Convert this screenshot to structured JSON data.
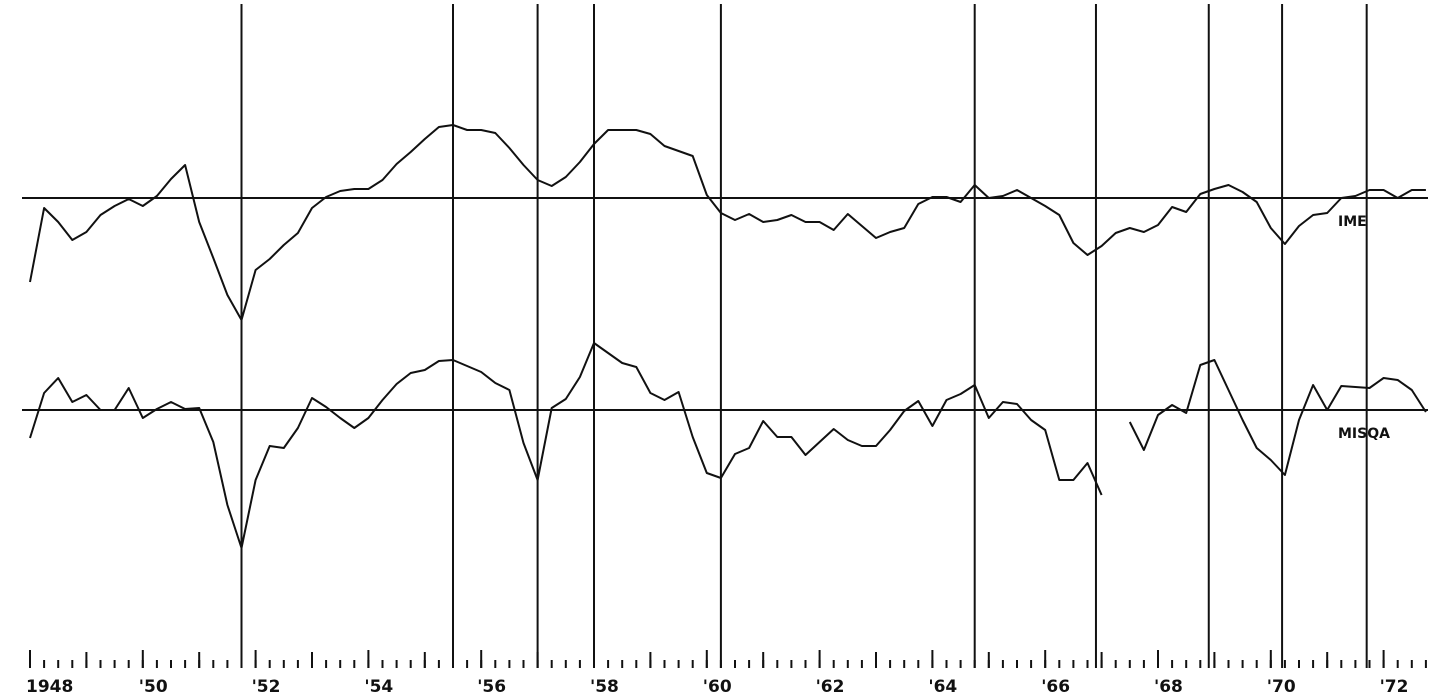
{
  "chart_data": {
    "type": "line",
    "xlim": [
      1948,
      1973
    ],
    "ylim": [
      0,
      60
    ],
    "xticks": [
      {
        "value": 1948,
        "label": "1948"
      },
      {
        "value": 1950,
        "label": "'50"
      },
      {
        "value": 1952,
        "label": "'52"
      },
      {
        "value": 1954,
        "label": "'54"
      },
      {
        "value": 1956,
        "label": "'56"
      },
      {
        "value": 1958,
        "label": "'58"
      },
      {
        "value": 1960,
        "label": "'60"
      },
      {
        "value": 1962,
        "label": "'62"
      },
      {
        "value": 1964,
        "label": "'64"
      },
      {
        "value": 1966,
        "label": "'66"
      },
      {
        "value": 1968,
        "label": "'68"
      },
      {
        "value": 1970,
        "label": "'70"
      },
      {
        "value": 1972,
        "label": "'72"
      }
    ],
    "minor_xticks": [
      1949,
      1951,
      1953,
      1955,
      1957,
      1959,
      1961,
      1963,
      1965,
      1967,
      1969,
      1971
    ],
    "reference_lines": [
      1951.75,
      1955.5,
      1957.0,
      1958.0,
      1960.25,
      1964.75,
      1966.9,
      1968.9,
      1970.2,
      1971.7
    ],
    "x": [
      1948,
      1948.25,
      1948.5,
      1948.75,
      1949,
      1949.25,
      1949.5,
      1949.75,
      1950,
      1950.25,
      1950.5,
      1950.75,
      1951,
      1951.25,
      1951.5,
      1951.75,
      1952,
      1952.25,
      1952.5,
      1952.75,
      1953,
      1953.25,
      1953.5,
      1953.75,
      1954,
      1954.25,
      1954.5,
      1954.75,
      1955,
      1955.25,
      1955.5,
      1955.75,
      1956,
      1956.25,
      1956.5,
      1956.75,
      1957,
      1957.25,
      1957.5,
      1957.75,
      1958,
      1958.25,
      1958.5,
      1958.75,
      1959,
      1959.25,
      1959.5,
      1959.75,
      1960,
      1960.25,
      1960.5,
      1960.75,
      1961,
      1961.25,
      1961.5,
      1961.75,
      1962,
      1962.25,
      1962.5,
      1962.75,
      1963,
      1963.25,
      1963.5,
      1963.75,
      1964,
      1964.25,
      1964.5,
      1964.75,
      1965,
      1965.25,
      1965.5,
      1965.75,
      1966,
      1966.25,
      1966.5,
      1966.75,
      1967,
      1967.25,
      1967.5,
      1967.75,
      1968,
      1968.25,
      1968.5,
      1968.75,
      1969,
      1969.25,
      1969.5,
      1969.75,
      1970,
      1970.25,
      1970.5,
      1970.75,
      1971,
      1971.25,
      1971.5,
      1971.75,
      1972,
      1972.25,
      1972.5,
      1972.75
    ],
    "series": [
      {
        "name": "IME",
        "color": "#111111",
        "baseline": 40.2,
        "values": [
          31.8,
          39.2,
          37.8,
          36.0,
          36.8,
          38.5,
          39.4,
          40.1,
          39.4,
          40.4,
          42.1,
          43.5,
          37.8,
          34.2,
          30.5,
          28.0,
          33.0,
          34.1,
          35.5,
          36.7,
          39.2,
          40.3,
          40.9,
          41.1,
          41.1,
          42.0,
          43.6,
          44.8,
          46.1,
          47.3,
          47.5,
          47.0,
          47.0,
          46.7,
          45.2,
          43.5,
          42.0,
          41.4,
          42.3,
          43.8,
          45.6,
          47.0,
          47.0,
          47.0,
          46.6,
          45.4,
          44.9,
          44.4,
          40.5,
          38.7,
          38.0,
          38.6,
          37.8,
          38.0,
          38.5,
          37.8,
          37.8,
          37.0,
          38.6,
          37.4,
          36.2,
          36.8,
          37.2,
          39.6,
          40.3,
          40.3,
          39.8,
          41.5,
          40.2,
          40.4,
          41.0,
          40.2,
          39.4,
          38.5,
          35.7,
          34.5,
          35.4,
          36.7,
          37.2,
          36.8,
          37.5,
          39.3,
          38.8,
          40.6,
          41.1,
          41.5,
          40.8,
          39.8,
          37.2,
          35.6,
          37.4,
          38.5,
          38.7,
          40.2,
          40.4,
          41.0,
          41.0,
          40.2,
          41.0,
          41.0
        ]
      },
      {
        "name": "MISQA",
        "color": "#111111",
        "baseline": 19.0,
        "values": [
          16.2,
          20.7,
          22.2,
          19.8,
          20.5,
          19.0,
          19.0,
          21.2,
          18.2,
          19.1,
          19.8,
          19.1,
          19.2,
          15.8,
          9.5,
          5.2,
          12.0,
          15.4,
          15.2,
          17.2,
          20.2,
          19.3,
          18.2,
          17.2,
          18.2,
          20.0,
          21.6,
          22.7,
          23.0,
          23.9,
          24.0,
          23.4,
          22.8,
          21.7,
          21.0,
          15.7,
          12.0,
          19.2,
          20.1,
          22.3,
          25.7,
          24.7,
          23.7,
          23.3,
          20.7,
          20.0,
          20.8,
          16.3,
          12.7,
          12.2,
          14.6,
          15.2,
          17.9,
          16.3,
          16.3,
          14.5,
          15.8,
          17.1,
          16.0,
          15.4,
          15.4,
          17.0,
          18.9,
          19.9,
          17.4,
          20.0,
          20.6,
          21.5,
          18.2,
          19.8,
          19.6,
          18.0,
          17.0,
          12.0,
          12.0,
          13.7,
          10.5,
          null,
          17.8,
          15.0,
          18.5,
          19.5,
          18.7,
          23.5,
          24.0,
          21.0,
          18.0,
          15.2,
          14.0,
          12.5,
          18.0,
          21.5,
          19.0,
          21.4,
          21.3,
          21.2,
          22.2,
          22.0,
          21.0,
          18.8
        ]
      }
    ]
  }
}
